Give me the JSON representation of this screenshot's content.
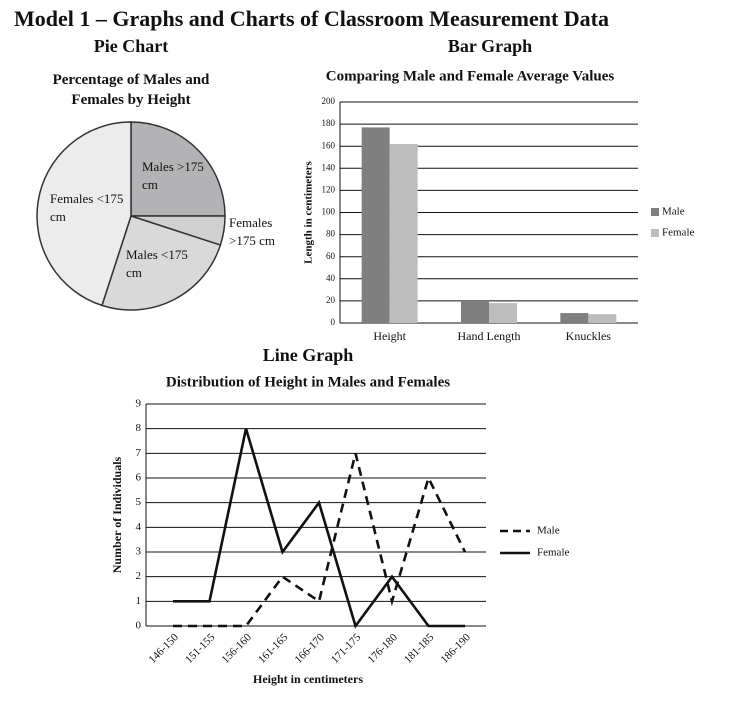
{
  "title": "Model 1 – Graphs and Charts of Classroom Measurement Data",
  "chart_data": [
    {
      "type": "pie",
      "heading": "Pie Chart",
      "title": "Percentage of Males and Females by Height",
      "labels": [
        "Males >175 cm",
        "Females >175 cm",
        "Males <175 cm",
        "Females <175 cm"
      ],
      "values": [
        25,
        5,
        25,
        45
      ],
      "colors": [
        "#b3b3b5",
        "#d0d0d0",
        "#d9d9d9",
        "#ececec"
      ]
    },
    {
      "type": "bar",
      "heading": "Bar Graph",
      "title": "Comparing Male and Female Average Values",
      "y_label": "Length in centimeters",
      "categories": [
        "Height",
        "Hand Length",
        "Knuckles"
      ],
      "series": [
        {
          "name": "Male",
          "color": "#7f7f80",
          "values": [
            177,
            20,
            9
          ]
        },
        {
          "name": "Female",
          "color": "#bdbdbd",
          "values": [
            162,
            18,
            8
          ]
        }
      ],
      "ylim": [
        0,
        200
      ],
      "yticks": [
        0,
        20,
        40,
        60,
        80,
        100,
        120,
        140,
        160,
        180,
        200
      ],
      "grid": true,
      "legend": "right"
    },
    {
      "type": "line",
      "heading": "Line Graph",
      "title": "Distribution of Height in Males and Females",
      "x_label": "Height in centimeters",
      "y_label": "Number of Individuals",
      "categories": [
        "146-150",
        "151-155",
        "156-160",
        "161-165",
        "166-170",
        "171-175",
        "176-180",
        "181-185",
        "186-190"
      ],
      "series": [
        {
          "name": "Male",
          "color": "#111111",
          "dash": "dashed",
          "values": [
            0,
            0,
            0,
            2,
            1,
            7,
            1,
            6,
            3
          ]
        },
        {
          "name": "Female",
          "color": "#111111",
          "dash": "solid",
          "values": [
            1,
            1,
            8,
            3,
            5,
            0,
            2,
            0,
            0
          ]
        }
      ],
      "ylim": [
        0,
        9
      ],
      "yticks": [
        0,
        1,
        2,
        3,
        4,
        5,
        6,
        7,
        8,
        9
      ],
      "grid": true,
      "legend": "right"
    }
  ]
}
